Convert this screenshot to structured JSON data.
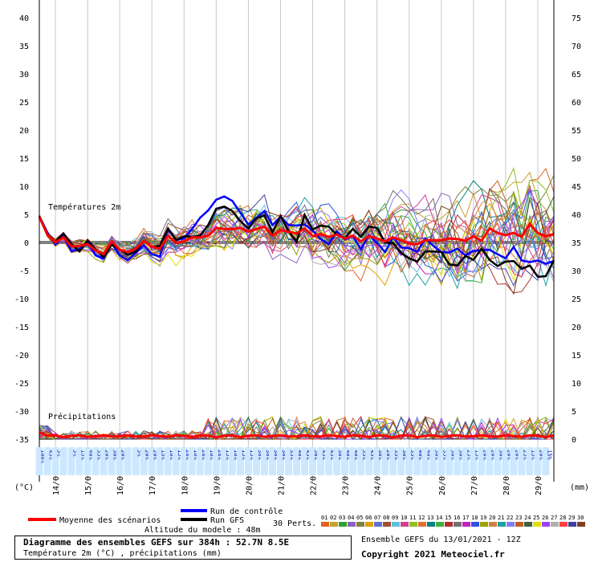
{
  "chart_data": {
    "type": "line",
    "left_axis": {
      "unit": "(°C)",
      "ticks": [
        40,
        35,
        30,
        25,
        20,
        15,
        10,
        5,
        0,
        -5,
        -10,
        -15,
        -20,
        -25,
        -30,
        -35
      ],
      "ylim": [
        -35,
        40
      ]
    },
    "right_axis": {
      "unit": "(mm)",
      "ticks": [
        75,
        70,
        65,
        60,
        55,
        50,
        45,
        40,
        35,
        30,
        25,
        20,
        15,
        10,
        5,
        0
      ]
    },
    "x_labels": [
      "14/01",
      "15/01",
      "16/01",
      "17/01",
      "18/01",
      "19/01",
      "20/01",
      "21/01",
      "22/01",
      "23/01",
      "24/01",
      "25/01",
      "26/01",
      "27/01",
      "28/01",
      "29/01"
    ],
    "time_steps_h": [
      0,
      6,
      12,
      18,
      24,
      30,
      36,
      42,
      48,
      54,
      60,
      66,
      72,
      78,
      84,
      90,
      96,
      102,
      108,
      114,
      120,
      126,
      132,
      138,
      144,
      150,
      156,
      162,
      168,
      174,
      180,
      186,
      192,
      198,
      204,
      210,
      216,
      222,
      228,
      234,
      240,
      246,
      252,
      258,
      264,
      270,
      276,
      282,
      288,
      294,
      300,
      306,
      312,
      318,
      324,
      330,
      336,
      342,
      348,
      354,
      360,
      366,
      372,
      378,
      384
    ],
    "precip_probability": [
      "100%",
      "45%",
      "5%",
      "",
      "5%",
      "15%",
      "40%",
      "55%",
      "20%",
      "30%",
      "20%",
      "",
      "5%",
      "20%",
      "20%",
      "15%",
      "10%",
      "15%",
      "20%",
      "10%",
      "20%",
      "10%",
      "20%",
      "15%",
      "10%",
      "15%",
      "15%",
      "30%",
      "30%",
      "30%",
      "30%",
      "35%",
      "40%",
      "45%",
      "50%",
      "45%",
      "45%",
      "30%",
      "40%",
      "40%",
      "55%",
      "45%",
      "30%",
      "20%",
      "35%",
      "30%",
      "35%",
      "40%",
      "40%",
      "30%",
      "35%",
      "30%",
      "30%",
      "25%",
      "15%",
      "20%",
      "20%",
      "30%",
      "20%",
      "20%",
      "25%",
      "15%",
      "20%",
      "15%"
    ],
    "series": [
      {
        "name": "Moyenne des scénarios",
        "values": [
          4.6,
          1.4,
          0,
          0.9,
          -0.7,
          -0.6,
          -0.3,
          -1.4,
          -2.1,
          0.2,
          -1.3,
          -1.7,
          -1.1,
          0.3,
          -0.8,
          -1.1,
          1.2,
          -0.1,
          0.2,
          0.9,
          0.9,
          1.2,
          2.6,
          2.4,
          2.4,
          2.6,
          1.9,
          2.4,
          2.8,
          1.2,
          2.2,
          1.9,
          1.6,
          2.5,
          1.1,
          1.5,
          1,
          1.4,
          0.7,
          1.2,
          0.2,
          1.1,
          0.7,
          0.2,
          0.9,
          0.4,
          -0.2,
          -0.3,
          0.4,
          0.4,
          0.4,
          0.7,
          0.6,
          0.3,
          1.1,
          0.3,
          2.5,
          1.7,
          1.3,
          1.7,
          1,
          3.3,
          1.7,
          1.1,
          1.5
        ]
      },
      {
        "name": "Run de contrôle",
        "values": [
          4.7,
          1.8,
          -0.4,
          1.1,
          -1.6,
          -1.2,
          0.2,
          -2.3,
          -2.9,
          -0.1,
          -2.3,
          -3.2,
          -1.8,
          -0.5,
          -2.1,
          -2.5,
          2.3,
          0.5,
          0.7,
          2.4,
          4.4,
          5.7,
          7.6,
          8.2,
          7.4,
          5.3,
          3.2,
          4.4,
          5.6,
          3.1,
          4.6,
          3.1,
          3,
          3.2,
          2.1,
          0.6,
          -0.3,
          2,
          0.5,
          1.1,
          -1.2,
          1.3,
          -0.1,
          -1.7,
          0.9,
          -0.9,
          -1,
          -1.7,
          0.7,
          -0.6,
          -1.7,
          -1.8,
          -1.1,
          -2.3,
          -1.5,
          -1.4,
          -1.3,
          -2.1,
          -2.8,
          -0.8,
          -3.2,
          -3.5,
          -3.2,
          -3.8,
          -3.3
        ]
      },
      {
        "name": "Run GFS",
        "values": [
          4.7,
          1.5,
          0.1,
          1.6,
          -0.3,
          -1.6,
          0.4,
          -1.2,
          -2.6,
          -0.4,
          -1.3,
          -2.2,
          -1.6,
          0.3,
          -0.8,
          -0.6,
          2.5,
          0.4,
          1.1,
          1,
          1.2,
          3.1,
          6,
          6.4,
          5.6,
          3.8,
          2.5,
          4.3,
          4.8,
          1.8,
          4.7,
          2,
          0.1,
          4.9,
          2.3,
          3,
          2.8,
          1.4,
          0.8,
          2.4,
          1,
          2.8,
          2.6,
          0,
          -0.1,
          -1.9,
          -2.8,
          -3.4,
          -1.6,
          -1.6,
          -1.7,
          -3.9,
          -4.1,
          -2.4,
          -3.1,
          -1.1,
          -3.1,
          -4.2,
          -3.4,
          -3.3,
          -4.7,
          -4.1,
          -6.1,
          -6,
          -3.2
        ]
      }
    ],
    "perturbation_count": 30,
    "perturbation_colors": [
      "#e06020",
      "#c8a030",
      "#30a030",
      "#9060c0",
      "#808040",
      "#e0a000",
      "#6070d0",
      "#a05030",
      "#60c0e0",
      "#d04090",
      "#90c020",
      "#e07030",
      "#008080",
      "#40b040",
      "#b03030",
      "#707070",
      "#c020c0",
      "#3050e0",
      "#a0a000",
      "#d08040",
      "#20a0a0",
      "#8080ff",
      "#c06020",
      "#406040",
      "#e0e000",
      "#a040ff",
      "#b0b0b0",
      "#ff4040",
      "#4040a0",
      "#804020"
    ],
    "perturbation_numbers": [
      "01",
      "02",
      "03",
      "04",
      "05",
      "06",
      "07",
      "08",
      "09",
      "10",
      "11",
      "12",
      "13",
      "14",
      "15",
      "16",
      "17",
      "18",
      "19",
      "20",
      "21",
      "22",
      "23",
      "24",
      "25",
      "26",
      "27",
      "28",
      "29",
      "30"
    ],
    "labels": {
      "temp": "Températures 2m",
      "precip": "Précipitations",
      "perts": "30 Perts."
    }
  },
  "legend": {
    "mean": "Moyenne des scénarios",
    "control": "Run de contrôle",
    "gfs": "Run GFS",
    "perts": "30 Perts."
  },
  "altitude": "Altitude du modele : 48m",
  "footer": {
    "title": "Diagramme des ensembles GEFS sur 384h : 52.7N 8.5E",
    "subtitle": "Température 2m (°C) , précipitations (mm)",
    "run": "Ensemble GEFS du 13/01/2021 - 12Z",
    "copyright": "Copyright 2021 Meteociel.fr"
  },
  "colors": {
    "mean": "#ff0000",
    "control": "#0000ff",
    "gfs": "#000000"
  }
}
